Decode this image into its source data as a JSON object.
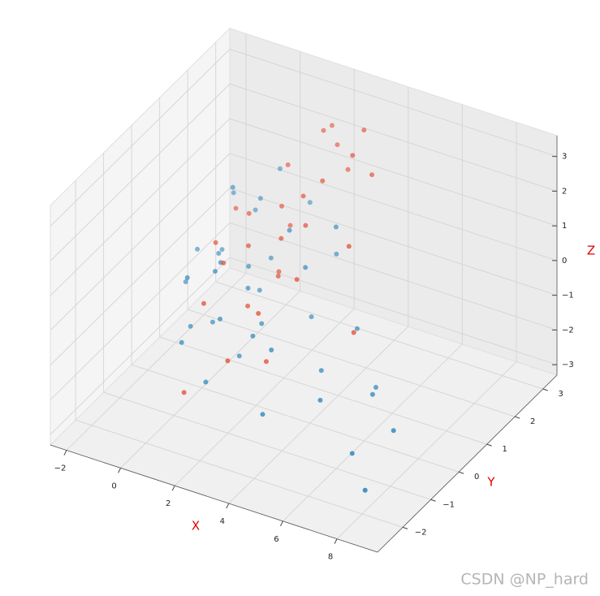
{
  "chart_data": {
    "type": "scatter3d",
    "xlabel": "X",
    "ylabel": "Y",
    "zlabel": "Z",
    "xlim": [
      -2.6,
      9.5
    ],
    "ylim": [
      -2.9,
      3.5
    ],
    "zlim": [
      -3.3,
      3.6
    ],
    "xticks": [
      {
        "value": -2,
        "label": "−2"
      },
      0,
      2,
      4,
      6,
      8
    ],
    "yticks": [
      {
        "value": -2,
        "label": "−2"
      },
      {
        "value": -1,
        "label": "−1"
      },
      0,
      1,
      2,
      3
    ],
    "zticks": [
      {
        "value": -3,
        "label": "−3"
      },
      {
        "value": -2,
        "label": "−2"
      },
      {
        "value": -1,
        "label": "−1"
      },
      0,
      1,
      2,
      3
    ],
    "grid": true,
    "depthshade": true,
    "series": [
      {
        "color": "#348abd",
        "x": [
          0.1,
          -0.5,
          0.8,
          1.2,
          0.3,
          1.5,
          2.0,
          -0.2,
          0.6,
          1.0,
          2.4,
          3.1,
          1.8,
          0.4,
          -1.0,
          0.9,
          2.7,
          3.5,
          4.0,
          1.3,
          0.2,
          -0.8,
          1.6,
          2.2,
          0.7,
          5.1,
          6.0,
          6.8,
          7.5,
          7.9,
          4.6,
          3.8,
          1.1,
          0.5,
          2.9,
          5.5,
          -0.6,
          1.9,
          3.3,
          0.0
        ],
        "y": [
          0.5,
          1.2,
          -0.3,
          0.9,
          1.8,
          -0.8,
          0.2,
          2.1,
          -1.1,
          1.5,
          -0.5,
          0.7,
          -1.6,
          2.4,
          0.8,
          -0.2,
          1.3,
          -0.9,
          0.4,
          2.6,
          -0.6,
          1.9,
          0.1,
          1.0,
          -1.4,
          -0.7,
          0.3,
          -1.2,
          -0.4,
          -1.8,
          1.1,
          -1.5,
          0.6,
          -0.1,
          2.0,
          0.9,
          0.0,
          -0.5,
          1.6,
          1.1
        ],
        "z": [
          0.2,
          -0.4,
          0.5,
          -0.9,
          0.8,
          -0.3,
          -1.1,
          0.1,
          0.9,
          -0.5,
          -0.8,
          0.4,
          -1.4,
          1.2,
          -0.2,
          0.7,
          -1.6,
          -0.6,
          -2.1,
          0.3,
          -1.0,
          0.6,
          -0.1,
          1.0,
          -0.7,
          -1.8,
          -2.2,
          -2.5,
          -2.3,
          -2.8,
          -1.3,
          -1.9,
          0.0,
          -1.2,
          -0.3,
          -2.6,
          -0.4,
          -1.5,
          0.9,
          1.6
        ]
      },
      {
        "color": "#e24a33",
        "x": [
          1.5,
          2.1,
          0.9,
          2.8,
          3.2,
          1.2,
          1.8,
          2.5,
          0.6,
          3.6,
          2.0,
          1.0,
          2.9,
          1.6,
          0.3,
          3.9,
          2.3,
          1.4,
          4.4,
          2.6,
          0.8,
          3.0,
          1.7,
          2.2,
          -0.3,
          3.4,
          1.1,
          5.2,
          2.4,
          1.9
        ],
        "y": [
          1.4,
          0.8,
          2.2,
          1.6,
          0.3,
          0.5,
          2.6,
          -0.4,
          1.1,
          1.9,
          2.9,
          -0.9,
          0.9,
          1.2,
          0.2,
          2.3,
          -1.3,
          1.8,
          1.0,
          2.7,
          0.0,
          -0.6,
          3.0,
          0.6,
          1.5,
          2.5,
          -1.7,
          0.4,
          1.3,
          -0.2
        ],
        "z": [
          1.2,
          0.9,
          1.6,
          2.1,
          0.4,
          0.7,
          2.5,
          -0.2,
          1.0,
          2.8,
          1.9,
          0.1,
          1.4,
          -0.5,
          0.8,
          2.0,
          -0.9,
          0.3,
          1.1,
          1.5,
          0.5,
          -1.3,
          2.3,
          0.0,
          0.6,
          3.0,
          -1.8,
          -0.7,
          1.8,
          -0.3
        ]
      }
    ]
  },
  "watermark": "CSDN @NP_hard"
}
